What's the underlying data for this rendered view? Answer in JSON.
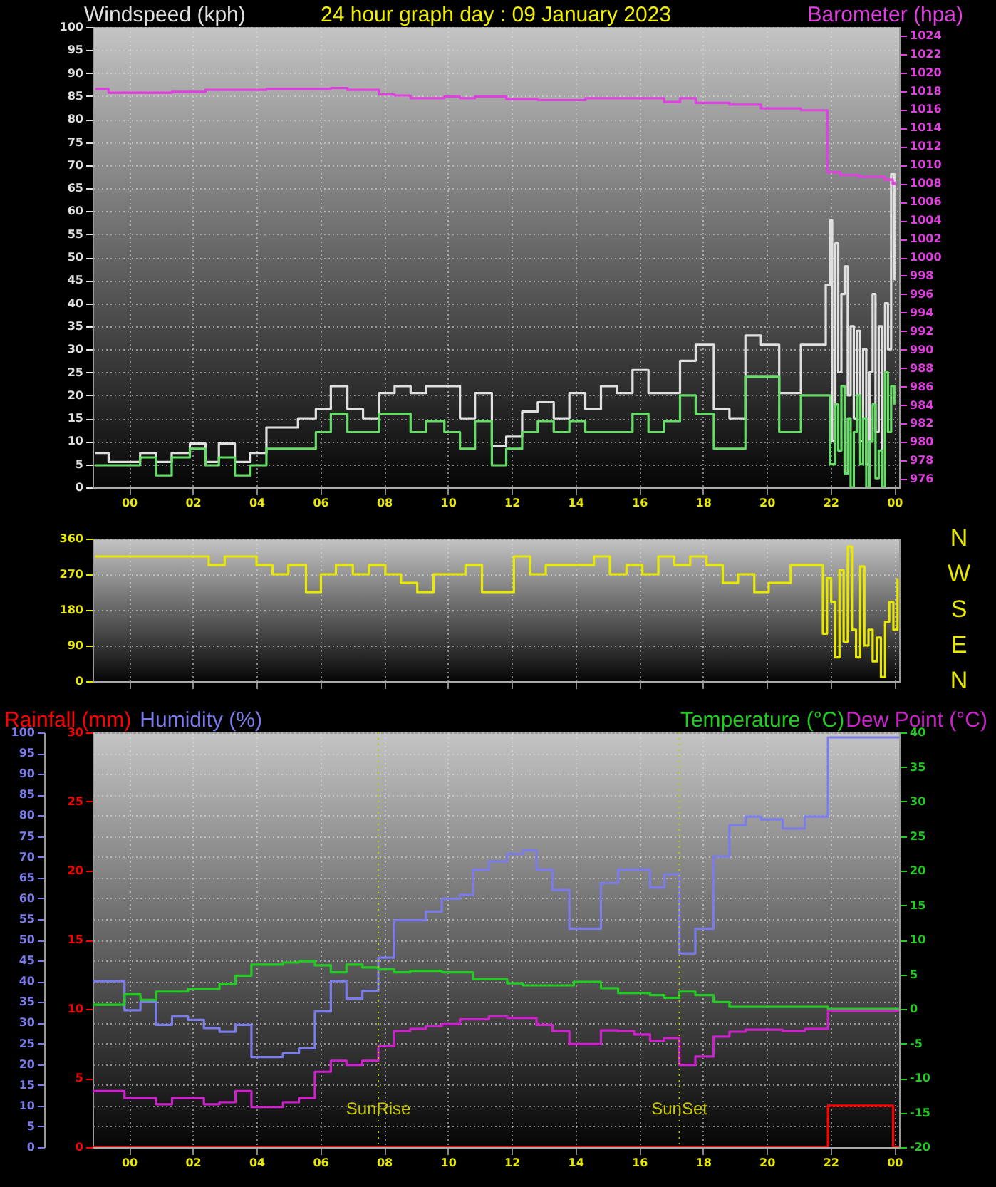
{
  "chart_data": [
    {
      "type": "step",
      "title": "24 hour graph day : 09 January 2023",
      "ylabel": "Windspeed (kph)",
      "y2label": "Barometer (hpa)",
      "grid": true,
      "xlim": [
        -1.14,
        24.15
      ],
      "xticks": [
        {
          "value": 0,
          "label": "00"
        },
        {
          "value": 2,
          "label": "02"
        },
        {
          "value": 4,
          "label": "04"
        },
        {
          "value": 6,
          "label": "06"
        },
        {
          "value": 8,
          "label": "08"
        },
        {
          "value": 10,
          "label": "10"
        },
        {
          "value": 12,
          "label": "12"
        },
        {
          "value": 14,
          "label": "14"
        },
        {
          "value": 16,
          "label": "16"
        },
        {
          "value": 18,
          "label": "18"
        },
        {
          "value": 20,
          "label": "20"
        },
        {
          "value": 22,
          "label": "22"
        },
        {
          "value": 24,
          "label": "00"
        }
      ],
      "ylim": [
        0,
        100
      ],
      "yticks": [
        0,
        5,
        10,
        15,
        20,
        25,
        30,
        35,
        40,
        45,
        50,
        55,
        60,
        65,
        70,
        75,
        80,
        85,
        90,
        95,
        100
      ],
      "y2lim": [
        975.1,
        1024.9
      ],
      "y2ticks": [
        976,
        978,
        980,
        982,
        984,
        986,
        988,
        990,
        992,
        994,
        996,
        998,
        1000,
        1002,
        1004,
        1006,
        1008,
        1010,
        1012,
        1014,
        1016,
        1018,
        1020,
        1022,
        1024
      ],
      "series": [
        {
          "color": "#e0e0e0",
          "x": [
            -1.06,
            -0.64,
            0.35,
            0.85,
            1.34,
            1.91,
            2.4,
            2.82,
            3.32,
            3.81,
            4.31,
            5.3,
            5.86,
            6.33,
            6.85,
            7.34,
            7.84,
            8.33,
            8.83,
            9.32,
            10.38,
            10.85,
            11.38,
            11.83,
            12.33,
            12.82,
            13.32,
            13.81,
            14.31,
            14.8,
            15.3,
            15.79,
            16.29,
            17.28,
            17.77,
            18.34,
            18.83,
            19.33,
            19.82,
            20.39,
            21.07,
            21.85,
            21.99,
            22.05,
            22.15,
            22.24,
            22.34,
            22.44,
            22.54,
            22.63,
            22.73,
            22.83,
            22.93,
            23.02,
            23.12,
            23.22,
            23.32,
            23.41,
            23.51,
            23.61,
            23.71,
            23.8,
            23.9,
            24.0
          ],
          "values": [
            7.5,
            5.5,
            7.5,
            5.5,
            7.5,
            9.5,
            5.5,
            9.5,
            5.5,
            7.5,
            13,
            15,
            17,
            22,
            17,
            15,
            20.5,
            22,
            20.5,
            22,
            15,
            20.5,
            9,
            11,
            16.5,
            18.5,
            15,
            20.5,
            17,
            22,
            20.5,
            25.5,
            20.5,
            27.5,
            31,
            17,
            15,
            33,
            31,
            20.5,
            31,
            44,
            58,
            10,
            53,
            25,
            42,
            48,
            20,
            35,
            15,
            34,
            10,
            30,
            5,
            25,
            42,
            12,
            35,
            0,
            40,
            30,
            68,
            45
          ]
        },
        {
          "color": "#66dd66",
          "x": [
            -1.06,
            0.35,
            0.85,
            1.34,
            1.91,
            2.4,
            2.82,
            3.32,
            3.81,
            4.31,
            5.86,
            6.33,
            6.85,
            7.84,
            8.83,
            9.32,
            9.89,
            10.38,
            10.85,
            11.38,
            11.83,
            12.33,
            12.82,
            13.32,
            13.81,
            14.31,
            15.79,
            16.29,
            16.78,
            17.28,
            17.77,
            18.34,
            19.33,
            20.39,
            21.07,
            21.85,
            21.99,
            22.15,
            22.24,
            22.34,
            22.44,
            22.54,
            22.63,
            22.73,
            22.83,
            22.93,
            23.02,
            23.12,
            23.22,
            23.32,
            23.41,
            23.51,
            23.61,
            23.71,
            23.8,
            23.9,
            24.0
          ],
          "values": [
            4.8,
            6.5,
            2.6,
            6.5,
            8.4,
            4.8,
            6.5,
            2.6,
            4.8,
            8.4,
            12,
            16,
            12,
            16,
            12,
            14.4,
            12,
            8.4,
            14.4,
            4.8,
            8.4,
            12,
            14.4,
            12,
            14.4,
            12,
            16,
            12,
            14.4,
            20,
            16,
            8.4,
            24,
            12,
            20,
            20,
            5,
            18,
            8,
            22,
            3,
            15,
            0,
            12,
            20,
            5,
            15,
            0,
            10,
            18,
            2,
            8,
            0,
            25,
            12,
            22,
            18
          ]
        },
        {
          "color": "#e040e0",
          "axis": "y2",
          "x": [
            -1.06,
            -0.64,
            1.35,
            2.4,
            4.31,
            6.33,
            6.85,
            7.84,
            8.33,
            8.83,
            9.89,
            10.38,
            10.85,
            11.83,
            12.82,
            14.31,
            16.78,
            17.28,
            17.77,
            18.83,
            19.82,
            21.07,
            21.9,
            22.3,
            22.9,
            23.7,
            23.95,
            24.0
          ],
          "values": [
            1018.2,
            1017.8,
            1017.9,
            1018.1,
            1018.2,
            1018.3,
            1018.1,
            1017.6,
            1017.5,
            1017.2,
            1017.4,
            1017.2,
            1017.4,
            1017.1,
            1017.0,
            1017.2,
            1016.8,
            1017.2,
            1016.7,
            1016.5,
            1016.1,
            1015.9,
            1009.2,
            1008.9,
            1008.7,
            1008.4,
            1007.9,
            1008.2
          ]
        }
      ]
    },
    {
      "type": "step",
      "grid": true,
      "tick_labels": "y",
      "xlim": [
        -1.14,
        24.15
      ],
      "xticks": [
        {
          "value": 0,
          "label": null
        },
        {
          "value": 2,
          "label": null
        },
        {
          "value": 4,
          "label": null
        },
        {
          "value": 6,
          "label": null
        },
        {
          "value": 8,
          "label": null
        },
        {
          "value": 10,
          "label": null
        },
        {
          "value": 12,
          "label": null
        },
        {
          "value": 14,
          "label": null
        },
        {
          "value": 16,
          "label": null
        },
        {
          "value": 18,
          "label": null
        },
        {
          "value": 20,
          "label": null
        },
        {
          "value": 22,
          "label": null
        },
        {
          "value": 24,
          "label": null
        }
      ],
      "ylim": [
        0,
        360
      ],
      "yticks": [
        0,
        90,
        180,
        270,
        360
      ],
      "annotations": [
        "N",
        "W",
        "S",
        "E",
        "N"
      ],
      "series": [
        {
          "color": "#e8e800",
          "x": [
            -1.06,
            2.5,
            3.0,
            4.0,
            4.5,
            5.0,
            5.55,
            6.02,
            6.49,
            7.02,
            7.53,
            8.04,
            8.53,
            9.04,
            9.55,
            10.55,
            11.07,
            12.07,
            12.58,
            13.07,
            14.58,
            15.08,
            15.6,
            16.1,
            16.6,
            17.1,
            17.6,
            18.11,
            18.62,
            19.1,
            19.61,
            20.06,
            20.75,
            21.76,
            21.89,
            22.02,
            22.15,
            22.28,
            22.41,
            22.54,
            22.67,
            22.8,
            22.93,
            23.06,
            23.19,
            23.32,
            23.45,
            23.58,
            23.71,
            23.84,
            23.97,
            24.1
          ],
          "values": [
            315,
            293,
            315,
            293,
            270,
            293,
            225,
            270,
            293,
            270,
            293,
            270,
            248,
            225,
            270,
            293,
            225,
            315,
            270,
            293,
            315,
            270,
            293,
            270,
            315,
            293,
            315,
            293,
            248,
            270,
            225,
            248,
            293,
            120,
            260,
            200,
            60,
            280,
            100,
            340,
            130,
            60,
            290,
            90,
            130,
            50,
            110,
            10,
            150,
            200,
            130,
            260
          ]
        }
      ]
    },
    {
      "type": "step",
      "grid": true,
      "xlim": [
        -1.14,
        24.15
      ],
      "xticks": [
        {
          "value": 0,
          "label": "00"
        },
        {
          "value": 2,
          "label": "02"
        },
        {
          "value": 4,
          "label": "04"
        },
        {
          "value": 6,
          "label": "06"
        },
        {
          "value": 8,
          "label": "08"
        },
        {
          "value": 10,
          "label": "10"
        },
        {
          "value": 12,
          "label": "12"
        },
        {
          "value": 14,
          "label": "14"
        },
        {
          "value": 16,
          "label": "16"
        },
        {
          "value": 18,
          "label": "18"
        },
        {
          "value": 20,
          "label": "20"
        },
        {
          "value": 22,
          "label": "22"
        },
        {
          "value": 24,
          "label": "00"
        }
      ],
      "ylim": [
        0,
        100
      ],
      "yticks": [
        0,
        5,
        10,
        15,
        20,
        25,
        30,
        35,
        40,
        45,
        50,
        55,
        60,
        65,
        70,
        75,
        80,
        85,
        90,
        95,
        100
      ],
      "y2lim": [
        -20,
        40
      ],
      "y2ticks": [
        -20,
        -15,
        -10,
        -5,
        0,
        5,
        10,
        15,
        20,
        25,
        30,
        35,
        40
      ],
      "y3lim": [
        0,
        30
      ],
      "y3ticks": [
        0,
        5,
        10,
        15,
        20,
        25,
        30
      ],
      "ref_lines": [
        {
          "axis": "x",
          "value": 7.82,
          "label": "SunRise",
          "color": "#c8c800",
          "line_style": "dotted"
        },
        {
          "axis": "x",
          "value": 17.26,
          "label": "SunSet",
          "color": "#c8c800",
          "line_style": "dotted"
        }
      ],
      "series": [
        {
          "name": "Rainfall (mm)",
          "color": "#ff0000",
          "axis": "y3",
          "x": [
            -1.14,
            21.92,
            23.96,
            24.15
          ],
          "values": [
            0,
            3,
            0,
            0
          ]
        },
        {
          "name": "Humidity (%)",
          "color": "#7b7bea",
          "x": [
            -1.14,
            -0.14,
            0.36,
            0.85,
            1.35,
            1.85,
            2.35,
            2.84,
            3.34,
            3.84,
            4.83,
            5.33,
            5.83,
            6.33,
            6.82,
            7.32,
            7.82,
            8.32,
            9.31,
            9.81,
            10.38,
            10.79,
            11.29,
            11.86,
            12.36,
            12.78,
            13.28,
            13.81,
            14.8,
            15.34,
            16.34,
            16.79,
            17.26,
            17.76,
            18.33,
            18.83,
            19.33,
            19.83,
            20.5,
            21.19,
            21.92,
            24.15
          ],
          "values": [
            40,
            33,
            35,
            29.5,
            31.5,
            30.7,
            28.7,
            27.8,
            29.5,
            21.7,
            22.6,
            23.8,
            32.7,
            40,
            35.8,
            37.7,
            45.7,
            54.7,
            56.8,
            59.9,
            60.8,
            66.9,
            68.9,
            70.7,
            71.6,
            66.9,
            62,
            52.7,
            63.7,
            66.9,
            62.6,
            65.8,
            46.7,
            52.7,
            70.1,
            77.6,
            79.7,
            79,
            76.8,
            79.7,
            98.8,
            98.8
          ]
        },
        {
          "name": "Temperature (°C)",
          "color": "#22cc22",
          "axis": "y2",
          "x": [
            -1.14,
            -0.14,
            0.36,
            0.85,
            1.85,
            2.84,
            3.34,
            3.84,
            4.83,
            5.33,
            5.83,
            6.33,
            6.82,
            7.32,
            7.82,
            8.32,
            8.82,
            9.81,
            10.79,
            11.86,
            12.36,
            13.95,
            14.8,
            15.34,
            16.34,
            16.79,
            17.26,
            17.76,
            18.33,
            18.83,
            21.92,
            24.15
          ],
          "values": [
            0.6,
            2.1,
            1.3,
            2.5,
            2.9,
            3.6,
            4.8,
            6.4,
            6.7,
            6.9,
            6.3,
            5.3,
            6.4,
            6.0,
            5.7,
            5.3,
            5.5,
            5.3,
            4.3,
            3.7,
            3.4,
            3.9,
            3.0,
            2.3,
            2.0,
            1.6,
            2.5,
            2.0,
            1.0,
            0.3,
            0.0,
            0.0
          ]
        },
        {
          "name": "Dew Point (°C)",
          "color": "#cc22cc",
          "axis": "y2",
          "x": [
            -1.14,
            -0.14,
            0.85,
            1.35,
            2.35,
            2.84,
            3.34,
            3.84,
            4.83,
            5.33,
            5.83,
            6.33,
            6.82,
            7.32,
            7.82,
            8.32,
            8.82,
            9.31,
            9.81,
            10.38,
            11.29,
            11.86,
            12.78,
            13.28,
            13.81,
            14.8,
            15.34,
            15.84,
            16.34,
            16.79,
            17.26,
            17.76,
            18.33,
            18.83,
            19.33,
            20.5,
            21.19,
            21.92,
            24.15
          ],
          "values": [
            -11.9,
            -12.9,
            -13.8,
            -12.9,
            -13.8,
            -13.5,
            -11.9,
            -14.2,
            -13.5,
            -12.9,
            -9.1,
            -7.5,
            -8.1,
            -7.5,
            -5.4,
            -3.2,
            -2.9,
            -2.5,
            -2.2,
            -1.5,
            -1.1,
            -1.3,
            -2.3,
            -3.2,
            -5.1,
            -3.1,
            -3.2,
            -3.7,
            -4.6,
            -4.2,
            -8.1,
            -6.9,
            -4.0,
            -3.3,
            -3.0,
            -3.2,
            -2.9,
            -0.3,
            -0.3
          ]
        }
      ]
    }
  ]
}
